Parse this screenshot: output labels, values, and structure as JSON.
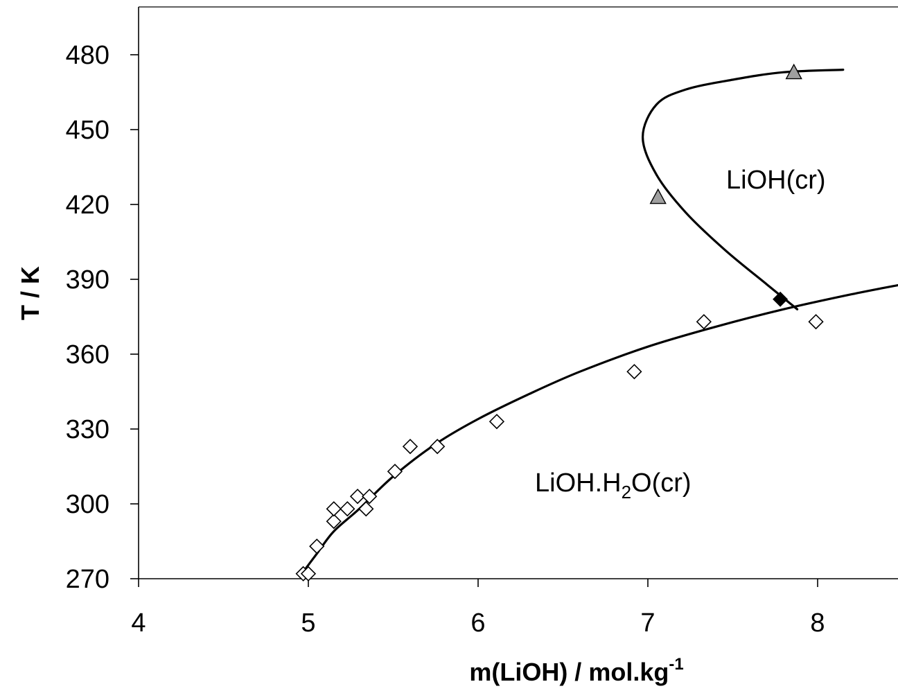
{
  "chart_data": {
    "type": "scatter",
    "xlabel": "m(LiOH) / mol.kg",
    "xlabel_sup": "-1",
    "ylabel": "T / K",
    "xlim": [
      4,
      8.5
    ],
    "ylim": [
      270,
      490
    ],
    "x_ticks": [
      "4",
      "5",
      "6",
      "7",
      "8"
    ],
    "y_ticks": [
      "270",
      "300",
      "330",
      "360",
      "390",
      "420",
      "450",
      "480"
    ],
    "grid": false,
    "annotations": {
      "upper_region": "LiOH(cr)",
      "lower_region_prefix": "LiOH.H",
      "lower_region_sub": "2",
      "lower_region_suffix": "O(cr)"
    },
    "series": [
      {
        "marker": "open-diamond",
        "points": [
          [
            4.97,
            272
          ],
          [
            5.0,
            272
          ],
          [
            5.05,
            283
          ],
          [
            5.15,
            293
          ],
          [
            5.15,
            298
          ],
          [
            5.23,
            298
          ],
          [
            5.29,
            303
          ],
          [
            5.34,
            298
          ],
          [
            5.36,
            303
          ],
          [
            5.51,
            313
          ],
          [
            5.6,
            323
          ],
          [
            5.76,
            323
          ],
          [
            6.11,
            333
          ],
          [
            6.92,
            353
          ],
          [
            7.33,
            373
          ],
          [
            7.99,
            373
          ]
        ]
      },
      {
        "marker": "filled-triangle",
        "color": "#a0a0a0",
        "points": [
          [
            7.06,
            423
          ],
          [
            7.86,
            473
          ]
        ]
      },
      {
        "marker": "filled-diamond",
        "color": "#000000",
        "points": [
          [
            7.78,
            382
          ]
        ]
      },
      {
        "type": "line",
        "points": [
          [
            4.95,
            271
          ],
          [
            5.05,
            280
          ],
          [
            5.15,
            289
          ],
          [
            5.3,
            298
          ],
          [
            5.5,
            311
          ],
          [
            5.75,
            324
          ],
          [
            6.0,
            334
          ],
          [
            6.3,
            344
          ],
          [
            6.6,
            353
          ],
          [
            7.0,
            363
          ],
          [
            7.4,
            371
          ],
          [
            7.8,
            378
          ],
          [
            8.2,
            384
          ],
          [
            8.5,
            388
          ]
        ]
      },
      {
        "type": "line",
        "points": [
          [
            7.88,
            378
          ],
          [
            7.7,
            388
          ],
          [
            7.45,
            402
          ],
          [
            7.22,
            417
          ],
          [
            7.05,
            432
          ],
          [
            6.97,
            447
          ],
          [
            7.05,
            460
          ],
          [
            7.22,
            466
          ],
          [
            7.5,
            470
          ],
          [
            7.8,
            473
          ],
          [
            8.15,
            474
          ]
        ]
      }
    ]
  }
}
